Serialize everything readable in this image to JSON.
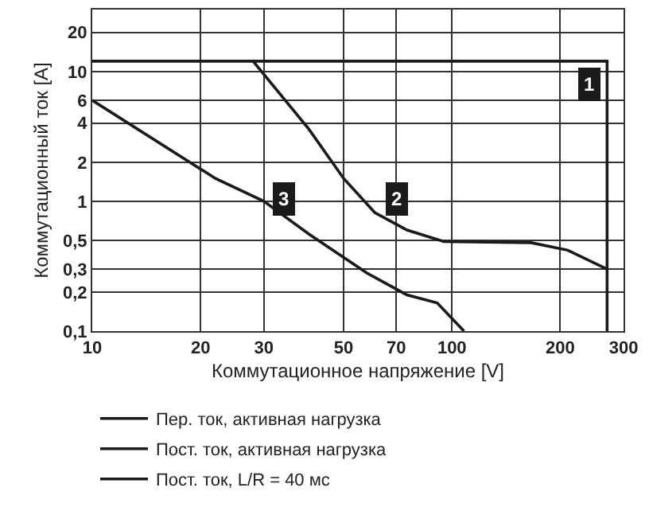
{
  "chart_data": {
    "type": "line",
    "xlabel": "Коммутационное напряжение [V]",
    "ylabel": "Коммутационный ток [A]",
    "log": "xy",
    "grid": true,
    "legend": "bottom",
    "marker": "none",
    "line_style": "solid",
    "xlim": [
      10,
      300
    ],
    "xticks": [
      10,
      20,
      30,
      50,
      70,
      100,
      200,
      300
    ],
    "ylim": [
      0.1,
      30
    ],
    "yticks": [
      {
        "value": 0.1,
        "label": "0,1"
      },
      {
        "value": 0.2,
        "label": "0,2"
      },
      {
        "value": 0.3,
        "label": "0,3"
      },
      {
        "value": 0.5,
        "label": "0,5"
      },
      1,
      2,
      4,
      6,
      10,
      20
    ],
    "series": [
      {
        "name": "Пер. ток, активная нагрузка",
        "color": "#1a1a1a",
        "x": [
          10,
          270,
          270
        ],
        "values": [
          12,
          12,
          0.1
        ]
      },
      {
        "name": "Пост. ток, активная нагрузка",
        "color": "#1a1a1a",
        "x": [
          28,
          40,
          50,
          61,
          75,
          95,
          166,
          210,
          270
        ],
        "values": [
          12,
          3.6,
          1.5,
          0.82,
          0.6,
          0.49,
          0.48,
          0.42,
          0.3
        ]
      },
      {
        "name": "Пост. ток, L/R = 40 мс",
        "color": "#1a1a1a",
        "x": [
          10,
          22,
          30,
          40,
          58,
          75,
          91,
          108
        ],
        "values": [
          6,
          1.5,
          1.0,
          0.56,
          0.28,
          0.19,
          0.165,
          0.1
        ]
      }
    ],
    "annotations": [
      {
        "text": "1",
        "x": 240,
        "y": 8
      },
      {
        "text": "2",
        "x": 70,
        "y": 1.05
      },
      {
        "text": "3",
        "x": 34,
        "y": 1.05
      }
    ]
  }
}
